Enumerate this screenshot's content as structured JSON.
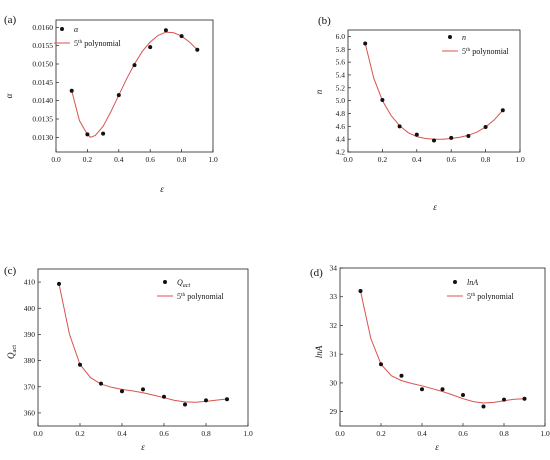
{
  "chart_data": [
    {
      "type": "scatter",
      "panel_label": "(a)",
      "xlabel": "ε",
      "ylabel": "α",
      "xlim": [
        0.0,
        1.0
      ],
      "ylim": [
        0.0126,
        0.0162
      ],
      "xticks": [
        "0.0",
        "0.2",
        "0.4",
        "0.6",
        "0.8",
        "1.0"
      ],
      "yticks": [
        "0.0130",
        "0.0135",
        "0.0140",
        "0.0145",
        "0.0150",
        "0.0155",
        "0.0160"
      ],
      "ytick_values": [
        0.013,
        0.0135,
        0.014,
        0.0145,
        0.015,
        0.0155,
        0.016
      ],
      "legend_position": "top-left",
      "series": [
        {
          "name": "α",
          "kind": "points",
          "x": [
            0.1,
            0.2,
            0.3,
            0.4,
            0.5,
            0.6,
            0.7,
            0.8,
            0.9
          ],
          "y": [
            0.01427,
            0.01308,
            0.0131,
            0.01415,
            0.01497,
            0.01546,
            0.01592,
            0.01576,
            0.01539
          ]
        },
        {
          "name": "5th polynomial",
          "kind": "fit",
          "x": [
            0.1,
            0.15,
            0.2,
            0.22,
            0.25,
            0.3,
            0.35,
            0.4,
            0.45,
            0.5,
            0.55,
            0.6,
            0.65,
            0.7,
            0.75,
            0.8,
            0.85,
            0.9
          ],
          "y": [
            0.01427,
            0.01345,
            0.01308,
            0.013,
            0.01305,
            0.0133,
            0.0137,
            0.01415,
            0.0146,
            0.015,
            0.01535,
            0.0156,
            0.01578,
            0.01587,
            0.01585,
            0.01576,
            0.0156,
            0.01539
          ]
        }
      ],
      "legend_name_html": {
        "superscript": "th",
        "base": "5",
        "rest": " polynomial"
      }
    },
    {
      "type": "scatter",
      "panel_label": "(b)",
      "xlabel": "ε",
      "ylabel": "n",
      "xlim": [
        0.0,
        1.0
      ],
      "ylim": [
        4.2,
        6.1
      ],
      "xticks": [
        "0.0",
        "0.2",
        "0.4",
        "0.6",
        "0.8",
        "1.0"
      ],
      "yticks": [
        "4.2",
        "4.4",
        "4.6",
        "4.8",
        "5.0",
        "5.2",
        "5.4",
        "5.6",
        "5.8",
        "6.0"
      ],
      "ytick_values": [
        4.2,
        4.4,
        4.6,
        4.8,
        5.0,
        5.2,
        5.4,
        5.6,
        5.8,
        6.0
      ],
      "legend_position": "top-right",
      "series": [
        {
          "name": "n",
          "kind": "points",
          "x": [
            0.1,
            0.2,
            0.3,
            0.4,
            0.5,
            0.6,
            0.7,
            0.8,
            0.9
          ],
          "y": [
            5.89,
            5.01,
            4.6,
            4.47,
            4.38,
            4.42,
            4.45,
            4.59,
            4.85
          ]
        },
        {
          "name": "5th polynomial",
          "kind": "fit",
          "x": [
            0.1,
            0.15,
            0.2,
            0.25,
            0.3,
            0.35,
            0.4,
            0.45,
            0.5,
            0.55,
            0.6,
            0.65,
            0.7,
            0.75,
            0.8,
            0.85,
            0.9
          ],
          "y": [
            5.89,
            5.35,
            5.0,
            4.77,
            4.61,
            4.5,
            4.44,
            4.41,
            4.4,
            4.4,
            4.41,
            4.43,
            4.46,
            4.51,
            4.59,
            4.7,
            4.85
          ]
        }
      ],
      "legend_name_html": {
        "superscript": "th",
        "base": "5",
        "rest": " polynomial"
      }
    },
    {
      "type": "scatter",
      "panel_label": "(c)",
      "xlabel": "ε",
      "ylabel": "Q",
      "ylabel_sub": "act",
      "xlim": [
        0.0,
        1.0
      ],
      "ylim": [
        355,
        415
      ],
      "xticks": [
        "0.0",
        "0.2",
        "0.4",
        "0.6",
        "0.8",
        "1.0"
      ],
      "yticks": [
        "360",
        "370",
        "380",
        "390",
        "400",
        "410"
      ],
      "ytick_values": [
        360,
        370,
        380,
        390,
        400,
        410
      ],
      "legend_position": "top-right",
      "series": [
        {
          "name": "Q",
          "name_sub": "act",
          "kind": "points",
          "x": [
            0.1,
            0.2,
            0.3,
            0.4,
            0.5,
            0.6,
            0.7,
            0.8,
            0.9
          ],
          "y": [
            409.3,
            378.4,
            371.2,
            368.3,
            369.0,
            366.2,
            363.2,
            364.8,
            365.2
          ]
        },
        {
          "name": "5th polynomial",
          "kind": "fit",
          "x": [
            0.1,
            0.15,
            0.2,
            0.25,
            0.3,
            0.35,
            0.4,
            0.45,
            0.5,
            0.55,
            0.6,
            0.65,
            0.7,
            0.75,
            0.8,
            0.85,
            0.9
          ],
          "y": [
            409.3,
            390.0,
            378.5,
            373.5,
            371.0,
            369.8,
            369.0,
            368.4,
            367.7,
            366.8,
            365.8,
            364.8,
            364.2,
            364.1,
            364.4,
            364.9,
            365.3
          ]
        }
      ],
      "legend_name_html": {
        "superscript": "th",
        "base": "5",
        "rest": " polynomial"
      }
    },
    {
      "type": "scatter",
      "panel_label": "(d)",
      "xlabel": "ε",
      "ylabel": "lnA",
      "xlim": [
        0.0,
        1.0
      ],
      "ylim": [
        28.5,
        34.0
      ],
      "xticks": [
        "0.0",
        "0.2",
        "0.4",
        "0.6",
        "0.8",
        "1.0"
      ],
      "yticks": [
        "29",
        "30",
        "31",
        "32",
        "33",
        "34"
      ],
      "ytick_values": [
        29,
        30,
        31,
        32,
        33,
        34
      ],
      "legend_position": "top-right",
      "series": [
        {
          "name": "lnA",
          "kind": "points",
          "x": [
            0.1,
            0.2,
            0.3,
            0.4,
            0.5,
            0.6,
            0.7,
            0.8,
            0.9
          ],
          "y": [
            33.2,
            30.65,
            30.25,
            29.78,
            29.78,
            29.58,
            29.18,
            29.42,
            29.45
          ]
        },
        {
          "name": "5th polynomial",
          "kind": "fit",
          "x": [
            0.1,
            0.15,
            0.2,
            0.25,
            0.3,
            0.35,
            0.4,
            0.45,
            0.5,
            0.55,
            0.6,
            0.65,
            0.7,
            0.75,
            0.8,
            0.85,
            0.9
          ],
          "y": [
            33.2,
            31.55,
            30.65,
            30.25,
            30.08,
            29.98,
            29.9,
            29.8,
            29.7,
            29.58,
            29.45,
            29.35,
            29.3,
            29.32,
            29.38,
            29.43,
            29.45
          ]
        }
      ],
      "legend_name_html": {
        "superscript": "th",
        "base": "5",
        "rest": " polynomial"
      }
    }
  ]
}
